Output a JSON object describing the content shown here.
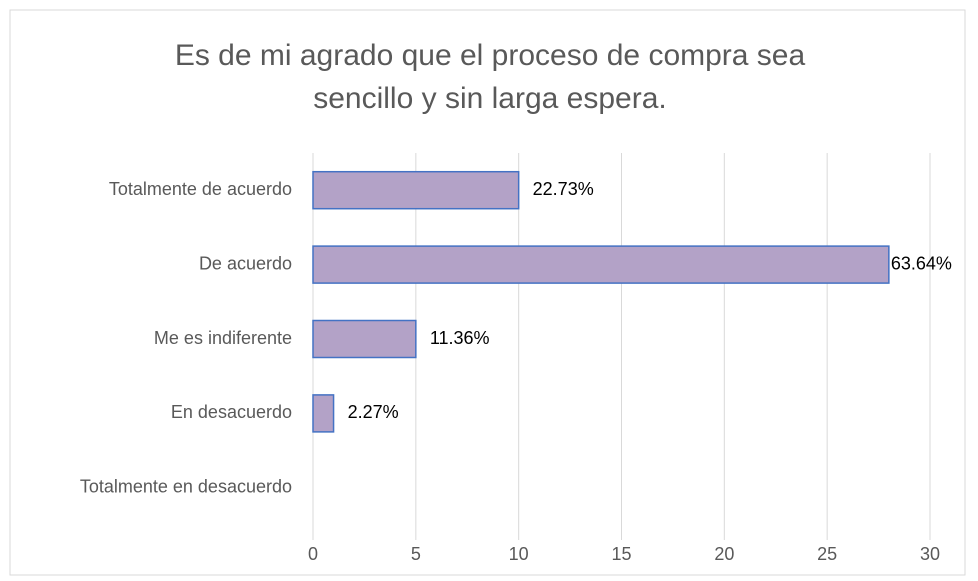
{
  "chart_data": {
    "type": "bar",
    "orientation": "horizontal",
    "title": [
      "Es de mi agrado que el proceso de compra sea",
      "sencillo y sin larga espera."
    ],
    "categories": [
      "Totalmente de acuerdo",
      "De acuerdo",
      "Me es indiferente",
      "En desacuerdo",
      "Totalmente en desacuerdo"
    ],
    "values": [
      10,
      28,
      5,
      1,
      0
    ],
    "value_labels": [
      "22.73%",
      "63.64%",
      "11.36%",
      "2.27%",
      null
    ],
    "color": "#b3a2c7",
    "edge_color": "#4472c4",
    "xlim": [
      0,
      30
    ],
    "xticks": [
      0,
      5,
      10,
      15,
      20,
      25,
      30
    ],
    "grid": true
  }
}
